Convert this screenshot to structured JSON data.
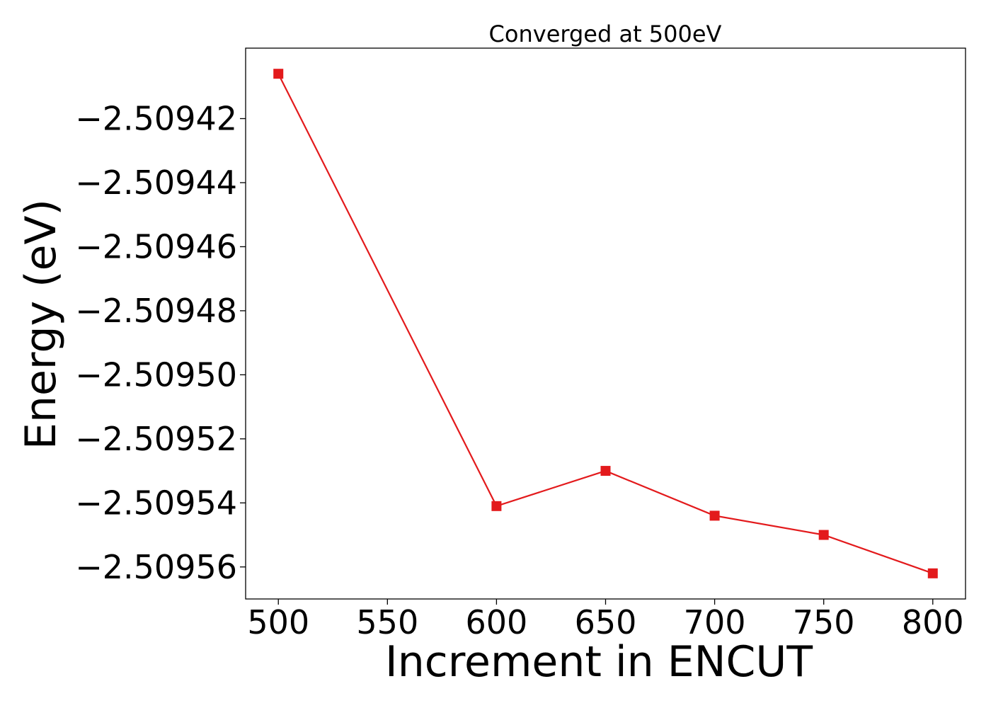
{
  "chart_data": {
    "type": "line",
    "title": "Converged at 500eV",
    "xlabel": "Increment in ENCUT",
    "ylabel": "Energy (eV)",
    "x": [
      500,
      600,
      650,
      700,
      750,
      800
    ],
    "series": [
      {
        "values": [
          -2.509406,
          -2.509541,
          -2.50953,
          -2.509544,
          -2.50955,
          -2.509562
        ],
        "color": "#e31a1c",
        "marker": "square"
      }
    ],
    "xlim": [
      485,
      815
    ],
    "ylim": [
      -2.50957,
      -2.509398
    ],
    "xticks": [
      500,
      550,
      600,
      650,
      700,
      750,
      800
    ],
    "xtick_labels": [
      "500",
      "550",
      "600",
      "650",
      "700",
      "750",
      "800"
    ],
    "yticks": [
      -2.50942,
      -2.50944,
      -2.50946,
      -2.50948,
      -2.5095,
      -2.50952,
      -2.50954,
      -2.50956
    ],
    "ytick_labels": [
      "−2.50942",
      "−2.50944",
      "−2.50946",
      "−2.50948",
      "−2.50950",
      "−2.50952",
      "−2.50954",
      "−2.50956"
    ],
    "grid": false,
    "legend": "none"
  }
}
